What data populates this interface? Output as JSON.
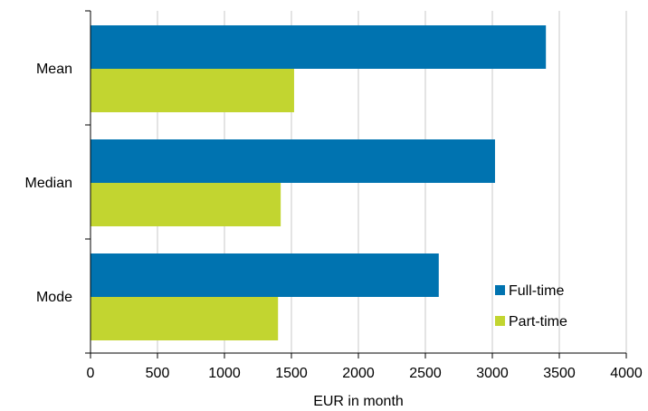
{
  "chart_data": {
    "type": "bar",
    "orientation": "horizontal",
    "categories": [
      "Mean",
      "Median",
      "Mode"
    ],
    "series": [
      {
        "name": "Full-time",
        "values": [
          3400,
          3020,
          2600
        ]
      },
      {
        "name": "Part-time",
        "values": [
          1520,
          1420,
          1400
        ]
      }
    ],
    "title": "",
    "xlabel": "EUR in month",
    "ylabel": "",
    "xlim": [
      0,
      4000
    ],
    "xticks": [
      0,
      500,
      1000,
      1500,
      2000,
      2500,
      3000,
      3500,
      4000
    ],
    "grid": "vertical",
    "legend_position": "bottom-right",
    "colors": {
      "Full-time": "#0073b0",
      "Part-time": "#c2d530",
      "grid": "#c8c8c8",
      "axis": "#000000"
    }
  }
}
